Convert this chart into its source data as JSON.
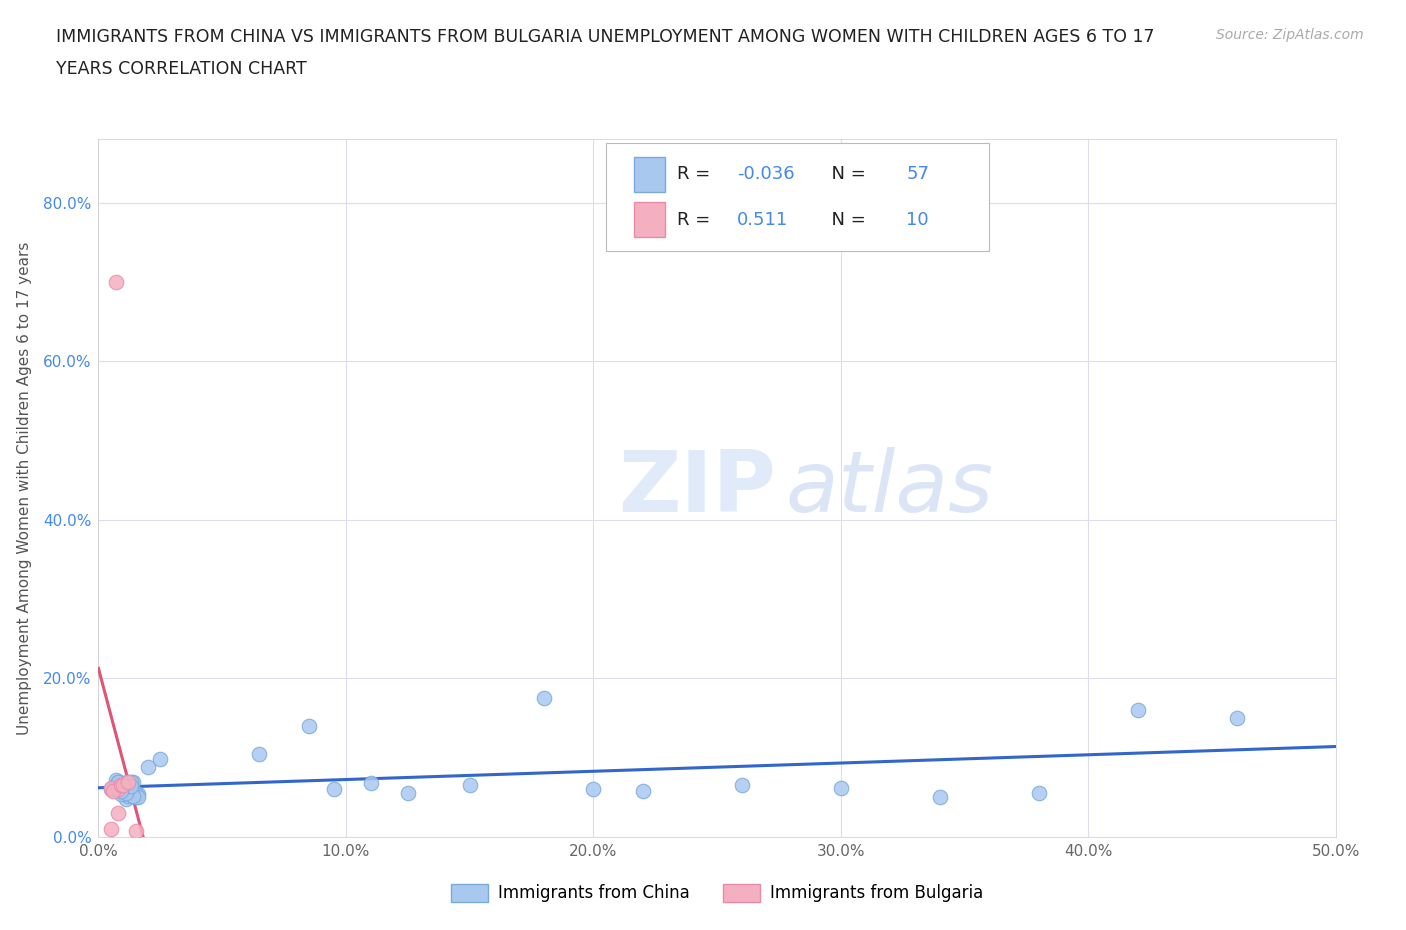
{
  "title_line1": "IMMIGRANTS FROM CHINA VS IMMIGRANTS FROM BULGARIA UNEMPLOYMENT AMONG WOMEN WITH CHILDREN AGES 6 TO 17",
  "title_line2": "YEARS CORRELATION CHART",
  "source": "Source: ZipAtlas.com",
  "ylabel": "Unemployment Among Women with Children Ages 6 to 17 years",
  "xlim": [
    0.0,
    0.5
  ],
  "ylim": [
    0.0,
    0.88
  ],
  "xtick_vals": [
    0.0,
    0.1,
    0.2,
    0.3,
    0.4,
    0.5
  ],
  "ytick_vals": [
    0.0,
    0.2,
    0.4,
    0.6,
    0.8
  ],
  "xtick_labels": [
    "0.0%",
    "10.0%",
    "20.0%",
    "30.0%",
    "40.0%",
    "50.0%"
  ],
  "ytick_labels": [
    "0.0%",
    "20.0%",
    "40.0%",
    "60.0%",
    "80.0%"
  ],
  "china_color": "#a8c8f0",
  "china_edge": "#7aaad8",
  "bulgaria_color": "#f4b0c0",
  "bulgaria_edge": "#e88aaa",
  "china_R": -0.036,
  "china_N": 57,
  "bulgaria_R": 0.511,
  "bulgaria_N": 10,
  "legend_label_china": "Immigrants from China",
  "legend_label_bulgaria": "Immigrants from Bulgaria",
  "watermark_zip": "ZIP",
  "watermark_atlas": "atlas",
  "trend_china_color": "#3366cc",
  "trend_bulgaria_color": "#e05575",
  "trend_gray_color": "#cccccc",
  "r_val_color": "#4488ee",
  "n_val_color": "#4488ee",
  "china_x": [
    0.005,
    0.008,
    0.01,
    0.012,
    0.015,
    0.006,
    0.009,
    0.007,
    0.011,
    0.013,
    0.016,
    0.01,
    0.008,
    0.012,
    0.014,
    0.009,
    0.007,
    0.011,
    0.013,
    0.01,
    0.015,
    0.008,
    0.012,
    0.009,
    0.011,
    0.014,
    0.007,
    0.01,
    0.013,
    0.008,
    0.016,
    0.011,
    0.009,
    0.012,
    0.01,
    0.014,
    0.008,
    0.011,
    0.013,
    0.009,
    0.02,
    0.025,
    0.065,
    0.085,
    0.095,
    0.11,
    0.125,
    0.15,
    0.18,
    0.2,
    0.22,
    0.26,
    0.3,
    0.34,
    0.38,
    0.42,
    0.46
  ],
  "china_y": [
    0.06,
    0.065,
    0.055,
    0.07,
    0.05,
    0.06,
    0.058,
    0.072,
    0.048,
    0.066,
    0.054,
    0.068,
    0.062,
    0.052,
    0.07,
    0.058,
    0.064,
    0.056,
    0.062,
    0.068,
    0.054,
    0.07,
    0.06,
    0.058,
    0.066,
    0.052,
    0.064,
    0.056,
    0.07,
    0.062,
    0.05,
    0.068,
    0.054,
    0.06,
    0.066,
    0.052,
    0.07,
    0.056,
    0.064,
    0.058,
    0.088,
    0.098,
    0.105,
    0.14,
    0.06,
    0.068,
    0.055,
    0.065,
    0.175,
    0.06,
    0.058,
    0.065,
    0.062,
    0.05,
    0.055,
    0.16,
    0.15
  ],
  "bulgaria_x": [
    0.005,
    0.008,
    0.006,
    0.009,
    0.007,
    0.005,
    0.01,
    0.008,
    0.012,
    0.015
  ],
  "bulgaria_y": [
    0.062,
    0.06,
    0.058,
    0.065,
    0.7,
    0.01,
    0.065,
    0.03,
    0.07,
    0.008
  ]
}
